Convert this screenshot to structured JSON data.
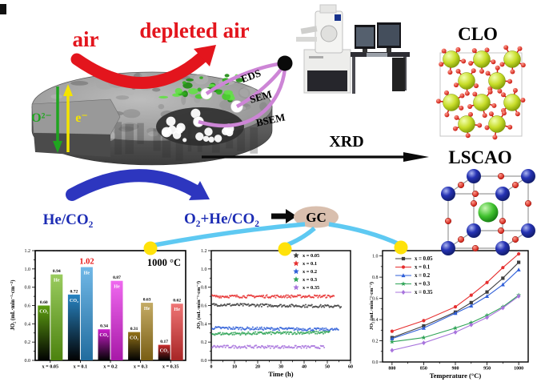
{
  "figure": {
    "air": "air",
    "depleted_air": "depleted air",
    "oxygen_ion": "O²⁻",
    "electron": "e⁻",
    "probe_lines": [
      "EDS",
      "SEM",
      "BSEM"
    ],
    "xrd": "XRD",
    "clo": "CLO",
    "lscao": "LSCAO",
    "he_co2": "He/CO₂",
    "o2_he_co2": "O₂+He/CO₂",
    "gc": "GC"
  },
  "colors": {
    "red_arrow": "#e3151d",
    "blue_arrow": "#2d36bf",
    "blue_text": "#1c2cb4",
    "purple_line": "#cd85d6",
    "cyan_line": "#5ec9f2",
    "yellow_dot": "#ffe20a",
    "gc_fill": "#d9bfae",
    "oxygen_ion_green": "#1fa51f",
    "electron_yellow": "#f5e400"
  },
  "chart_data": [
    {
      "type": "bar",
      "title": "1000 °C",
      "ylabel": "JO₂ (mL·min⁻¹·cm⁻²)",
      "ylim": [
        0.0,
        1.2
      ],
      "yticks": [
        0.0,
        0.2,
        0.4,
        0.6,
        0.8,
        1.0,
        1.2
      ],
      "categories": [
        "x = 0.05",
        "x = 0.1",
        "x = 0.2",
        "x = 0.3",
        "x = 0.35"
      ],
      "series": [
        {
          "name": "CO₂",
          "values": [
            0.6,
            0.72,
            0.34,
            0.31,
            0.17
          ]
        },
        {
          "name": "He",
          "values": [
            0.94,
            1.02,
            0.87,
            0.63,
            0.62
          ]
        }
      ],
      "value_labels": [
        [
          "0.60",
          "0.72",
          "0.34",
          "0.31",
          "0.17"
        ],
        [
          "0.94",
          "1.02",
          "0.87",
          "0.63",
          "0.62"
        ]
      ],
      "highlight": {
        "series": 1,
        "index": 1,
        "label": "1.02",
        "color": "#e81616"
      },
      "group_colors": [
        "#6ab413",
        "#2e96dc",
        "#e822e8",
        "#a8831c",
        "#e83434"
      ],
      "grid": false
    },
    {
      "type": "scatter",
      "xlabel": "Time (h)",
      "ylabel": "JO₂ (mL·min⁻¹·cm⁻²)",
      "xlim": [
        0,
        60
      ],
      "ylim": [
        0.0,
        1.2
      ],
      "xticks": [
        0,
        10,
        20,
        30,
        40,
        50,
        60
      ],
      "yticks": [
        0.0,
        0.2,
        0.4,
        0.6,
        0.8,
        1.0,
        1.2
      ],
      "legend_position": "top-right",
      "series": [
        {
          "name": "x = 0.05",
          "color": "#3d3d3d",
          "start": 0.61,
          "end": 0.59,
          "t_end": 56
        },
        {
          "name": "x = 0.1",
          "color": "#e62e2e",
          "start": 0.7,
          "end": 0.7,
          "t_end": 53
        },
        {
          "name": "x = 0.2",
          "color": "#2f5fd8",
          "start": 0.355,
          "end": 0.335,
          "t_end": 55
        },
        {
          "name": "x = 0.3",
          "color": "#2da355",
          "start": 0.29,
          "end": 0.305,
          "t_end": 51
        },
        {
          "name": "x = 0.35",
          "color": "#a874dd",
          "start": 0.15,
          "end": 0.145,
          "t_end": 49
        }
      ],
      "grid": false
    },
    {
      "type": "line",
      "xlabel": "Temperature (°C)",
      "ylabel": "JO₂ (mL·min⁻¹·cm⁻²)",
      "x": [
        800,
        850,
        900,
        925,
        950,
        975,
        1000
      ],
      "xticks": [
        800,
        850,
        900,
        950,
        1000
      ],
      "xlim": [
        785,
        1015
      ],
      "ylim": [
        0.0,
        1.05
      ],
      "yticks": [
        0.0,
        0.2,
        0.4,
        0.6,
        0.8,
        1.0
      ],
      "legend_position": "top-left",
      "series": [
        {
          "name": "x = 0.05",
          "color": "#3d3d3d",
          "marker": "square",
          "values": [
            0.23,
            0.34,
            0.47,
            0.56,
            0.66,
            0.79,
            0.94
          ]
        },
        {
          "name": "x = 0.1",
          "color": "#e62e2e",
          "marker": "circle",
          "values": [
            0.29,
            0.39,
            0.52,
            0.63,
            0.75,
            0.89,
            1.02
          ]
        },
        {
          "name": "x = 0.2",
          "color": "#2f5fd8",
          "marker": "triangle",
          "values": [
            0.22,
            0.32,
            0.46,
            0.53,
            0.62,
            0.73,
            0.87
          ]
        },
        {
          "name": "x = 0.3",
          "color": "#2da355",
          "marker": "star",
          "values": [
            0.19,
            0.23,
            0.32,
            0.37,
            0.44,
            0.52,
            0.63
          ]
        },
        {
          "name": "x = 0.35",
          "color": "#a874dd",
          "marker": "diamond",
          "values": [
            0.11,
            0.18,
            0.28,
            0.35,
            0.42,
            0.51,
            0.62
          ]
        }
      ],
      "grid": false
    }
  ]
}
